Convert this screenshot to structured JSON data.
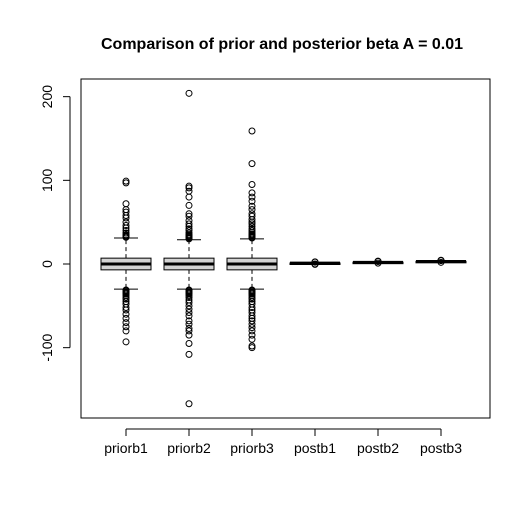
{
  "chart_data": {
    "type": "boxplot",
    "title": "Comparison of prior and posterior beta A = 0.01",
    "xlabel": "",
    "ylabel": "",
    "ylim": [
      -170,
      215
    ],
    "yticks": [
      -100,
      0,
      100,
      200
    ],
    "grid": false,
    "categories": [
      "priorb1",
      "priorb2",
      "priorb3",
      "postb1",
      "postb2",
      "postb3"
    ],
    "boxes": [
      {
        "name": "priorb1",
        "q1": -7,
        "median": 0,
        "q3": 7,
        "whisker_low": -30,
        "whisker_high": 31,
        "outliers": [
          -93,
          -80,
          -75,
          -70,
          -65,
          -60,
          -55,
          -52,
          -48,
          -45,
          -42,
          -40,
          -38,
          -36,
          -35,
          -34,
          -33,
          -32,
          -31,
          32,
          33,
          34,
          35,
          37,
          40,
          43,
          46,
          50,
          55,
          58,
          62,
          65,
          72,
          97,
          99
        ]
      },
      {
        "name": "priorb2",
        "q1": -7,
        "median": 0,
        "q3": 7,
        "whisker_low": -30,
        "whisker_high": 29,
        "outliers": [
          -167,
          -108,
          -95,
          -85,
          -80,
          -77,
          -72,
          -68,
          -62,
          -58,
          -54,
          -50,
          -46,
          -43,
          -40,
          -38,
          -36,
          -35,
          -34,
          -33,
          -32,
          -31,
          30,
          31,
          32,
          33,
          34,
          35,
          37,
          40,
          42,
          45,
          48,
          52,
          57,
          60,
          70,
          80,
          87,
          91,
          93,
          204
        ]
      },
      {
        "name": "priorb3",
        "q1": -7,
        "median": 0,
        "q3": 7,
        "whisker_low": -30,
        "whisker_high": 30,
        "outliers": [
          -100,
          -98,
          -90,
          -85,
          -80,
          -76,
          -72,
          -68,
          -65,
          -62,
          -58,
          -55,
          -52,
          -48,
          -45,
          -42,
          -40,
          -38,
          -36,
          -35,
          -34,
          -33,
          -32,
          -31,
          31,
          32,
          33,
          34,
          35,
          36,
          38,
          40,
          42,
          45,
          48,
          50,
          53,
          57,
          60,
          65,
          69,
          75,
          80,
          85,
          95,
          120,
          159
        ]
      },
      {
        "name": "postb1",
        "q1": 0.8,
        "median": 1.0,
        "q3": 1.2,
        "whisker_low": 0.5,
        "whisker_high": 1.5,
        "outliers": [
          -0.5,
          0.0,
          2.2,
          2.5
        ]
      },
      {
        "name": "postb2",
        "q1": 1.8,
        "median": 2.0,
        "q3": 2.2,
        "whisker_low": 1.5,
        "whisker_high": 2.5,
        "outliers": [
          1.0,
          3.0,
          3.5
        ]
      },
      {
        "name": "postb3",
        "q1": 2.8,
        "median": 3.0,
        "q3": 3.2,
        "whisker_low": 2.5,
        "whisker_high": 3.5,
        "outliers": [
          2.0,
          4.0,
          4.5
        ]
      }
    ],
    "colors": {
      "box_fill": "#d3d3d3",
      "stroke": "#000000",
      "background": "#ffffff"
    }
  }
}
